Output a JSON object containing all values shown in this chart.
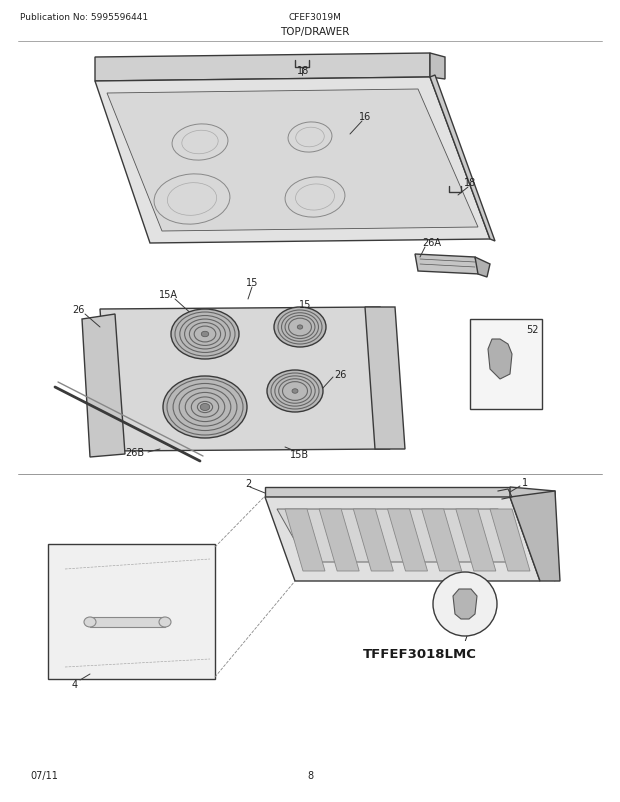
{
  "title": "TOP/DRAWER",
  "model": "CFEF3019M",
  "pub_no": "Publication No: 5995596441",
  "date": "07/11",
  "page": "8",
  "tffef": "TFFEF3018LMC",
  "bg_color": "#ffffff",
  "line_color": "#3a3a3a"
}
